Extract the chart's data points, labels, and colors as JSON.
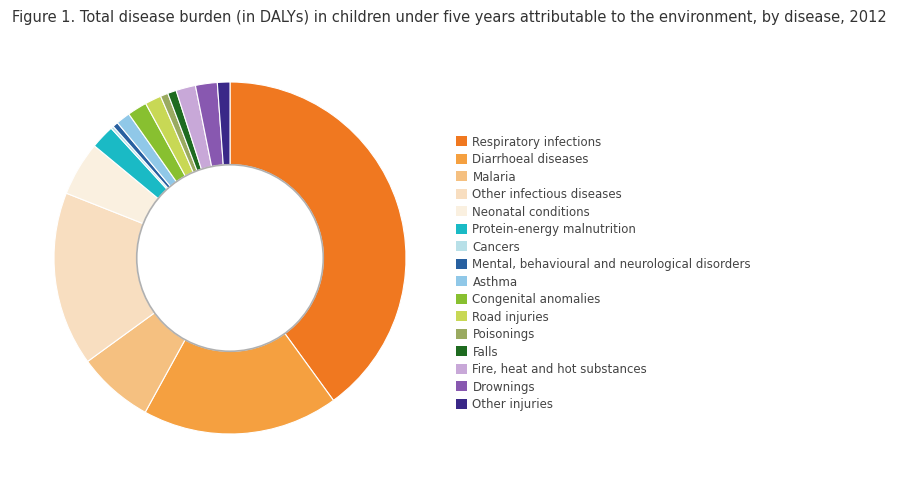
{
  "title": "Figure 1. Total disease burden (in DALYs) in children under five years attributable to the environment, by disease, 2012",
  "labels": [
    "Respiratory infections",
    "Diarrhoeal diseases",
    "Malaria",
    "Other infectious diseases",
    "Neonatal conditions",
    "Protein-energy malnutrition",
    "Cancers",
    "Mental, behavioural and neurological disorders",
    "Asthma",
    "Congenital anomalies",
    "Road injuries",
    "Poisonings",
    "Falls",
    "Fire, heat and hot substances",
    "Drownings",
    "Other injuries"
  ],
  "values": [
    40.0,
    18.0,
    7.0,
    16.0,
    5.0,
    2.2,
    0.25,
    0.5,
    1.3,
    1.8,
    1.5,
    0.7,
    0.8,
    1.8,
    2.0,
    1.15
  ],
  "colors": [
    "#F07820",
    "#F5A040",
    "#F5C080",
    "#F8DEC0",
    "#FAF0E0",
    "#1ABAC5",
    "#B8E0E8",
    "#2860A0",
    "#90C8E8",
    "#88C030",
    "#C8D855",
    "#9AAA60",
    "#1E6B20",
    "#C8A8D8",
    "#8858B0",
    "#3A2888"
  ],
  "background_color": "#ffffff",
  "title_fontsize": 10.5,
  "legend_fontsize": 8.5,
  "wedge_linewidth": 0.8,
  "donut_width": 0.47
}
